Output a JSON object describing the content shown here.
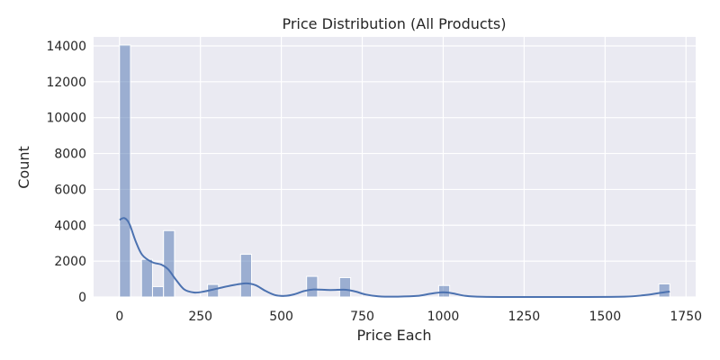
{
  "chart_data": {
    "type": "bar",
    "subtype": "histogram-with-kde",
    "title": "Price Distribution (All Products)",
    "xlabel": "Price Each",
    "ylabel": "Count",
    "xlim": [
      -80,
      1780
    ],
    "ylim": [
      0,
      14500
    ],
    "xticks": [
      0,
      250,
      500,
      750,
      1000,
      1250,
      1500,
      1750
    ],
    "yticks": [
      0,
      2000,
      4000,
      6000,
      8000,
      10000,
      12000,
      14000
    ],
    "grid": true,
    "bin_width": 34,
    "bars": [
      {
        "x0": 0,
        "x1": 34,
        "count": 14050
      },
      {
        "x0": 68,
        "x1": 102,
        "count": 2100
      },
      {
        "x0": 102,
        "x1": 136,
        "count": 580
      },
      {
        "x0": 136,
        "x1": 170,
        "count": 3700
      },
      {
        "x0": 272,
        "x1": 306,
        "count": 700
      },
      {
        "x0": 374,
        "x1": 408,
        "count": 2380
      },
      {
        "x0": 578,
        "x1": 612,
        "count": 1150
      },
      {
        "x0": 680,
        "x1": 714,
        "count": 1080
      },
      {
        "x0": 986,
        "x1": 1020,
        "count": 640
      },
      {
        "x0": 1666,
        "x1": 1700,
        "count": 730
      }
    ],
    "kde": [
      [
        0,
        4300
      ],
      [
        15,
        4400
      ],
      [
        30,
        4100
      ],
      [
        50,
        3100
      ],
      [
        70,
        2350
      ],
      [
        100,
        1950
      ],
      [
        130,
        1800
      ],
      [
        150,
        1550
      ],
      [
        175,
        950
      ],
      [
        200,
        420
      ],
      [
        230,
        250
      ],
      [
        260,
        300
      ],
      [
        300,
        460
      ],
      [
        340,
        620
      ],
      [
        390,
        760
      ],
      [
        420,
        660
      ],
      [
        450,
        350
      ],
      [
        480,
        110
      ],
      [
        510,
        60
      ],
      [
        540,
        150
      ],
      [
        570,
        330
      ],
      [
        600,
        420
      ],
      [
        650,
        390
      ],
      [
        700,
        400
      ],
      [
        730,
        300
      ],
      [
        760,
        140
      ],
      [
        800,
        40
      ],
      [
        860,
        20
      ],
      [
        920,
        60
      ],
      [
        960,
        180
      ],
      [
        1000,
        260
      ],
      [
        1030,
        200
      ],
      [
        1070,
        60
      ],
      [
        1120,
        10
      ],
      [
        1200,
        0
      ],
      [
        1400,
        0
      ],
      [
        1560,
        20
      ],
      [
        1620,
        100
      ],
      [
        1660,
        200
      ],
      [
        1690,
        280
      ],
      [
        1700,
        300
      ]
    ],
    "colors": {
      "background": "#eaeaf2",
      "grid": "#ffffff",
      "bar_fill": "#4c72b0",
      "bar_opacity": "0.5",
      "kde_line": "#4c72b0"
    }
  }
}
